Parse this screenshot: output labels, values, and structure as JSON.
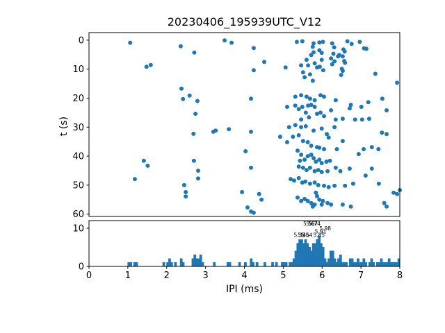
{
  "figure": {
    "title": "20230406_195939UTC_V12"
  },
  "colors": {
    "accent": "#1f77b4",
    "axis": "#000000",
    "background": "#ffffff"
  },
  "chart_data": [
    {
      "type": "scatter",
      "name": "ipi-vs-time-scatter",
      "title": "20230406_195939UTC_V12",
      "xlabel": "",
      "ylabel": "t (s)",
      "xlim": [
        0,
        8
      ],
      "ylim": [
        -2.6,
        60.8
      ],
      "y_inverted": true,
      "yticks": [
        0,
        10,
        20,
        30,
        40,
        50,
        60
      ],
      "grid": false,
      "marker_color": "#1f77b4",
      "marker_radius": 3,
      "points": [
        [
          1.06,
          0.9
        ],
        [
          3.49,
          0.1
        ],
        [
          2.36,
          2.1
        ],
        [
          2.71,
          4.3
        ],
        [
          3.67,
          0.9
        ],
        [
          1.48,
          9.2
        ],
        [
          1.59,
          8.6
        ],
        [
          2.38,
          16.7
        ],
        [
          2.42,
          20.3
        ],
        [
          2.59,
          19.1
        ],
        [
          2.79,
          21.0
        ],
        [
          2.74,
          25.4
        ],
        [
          4.24,
          2.7
        ],
        [
          4.24,
          10.4
        ],
        [
          4.51,
          7.5
        ],
        [
          5.06,
          9.4
        ],
        [
          5.35,
          0.6
        ],
        [
          5.49,
          0.4
        ],
        [
          5.78,
          1.1
        ],
        [
          5.93,
          0.8
        ],
        [
          6.02,
          0.6
        ],
        [
          6.26,
          1.1
        ],
        [
          6.65,
          0.4
        ],
        [
          6.76,
          1.3
        ],
        [
          6.97,
          0.6
        ],
        [
          7.08,
          2.8
        ],
        [
          7.14,
          3.0
        ],
        [
          6.55,
          3.2
        ],
        [
          5.76,
          2.3
        ],
        [
          5.78,
          4.2
        ],
        [
          5.72,
          5.1
        ],
        [
          5.93,
          3.5
        ],
        [
          5.99,
          4.4
        ],
        [
          6.31,
          2.5
        ],
        [
          6.29,
          4.7
        ],
        [
          6.44,
          5.1
        ],
        [
          6.58,
          3.9
        ],
        [
          6.53,
          5.6
        ],
        [
          6.57,
          7.2
        ],
        [
          6.59,
          7.8
        ],
        [
          6.51,
          9.9
        ],
        [
          5.46,
          8.7
        ],
        [
          5.51,
          11.1
        ],
        [
          5.6,
          6.8
        ],
        [
          5.64,
          8.7
        ],
        [
          5.69,
          11.8
        ],
        [
          5.81,
          8.0
        ],
        [
          5.87,
          9.4
        ],
        [
          5.94,
          9.2
        ],
        [
          5.99,
          6.8
        ],
        [
          6.03,
          10.4
        ],
        [
          6.23,
          6.3
        ],
        [
          6.26,
          8.3
        ],
        [
          6.32,
          7.3
        ],
        [
          6.41,
          5.6
        ],
        [
          6.49,
          12.0
        ],
        [
          6.53,
          10.6
        ],
        [
          7.37,
          11.6
        ],
        [
          7.93,
          14.7
        ],
        [
          5.55,
          12.8
        ],
        [
          5.76,
          14.0
        ],
        [
          4.17,
          20.2
        ],
        [
          5.31,
          19.5
        ],
        [
          5.46,
          19.0
        ],
        [
          5.6,
          19.5
        ],
        [
          5.69,
          20.2
        ],
        [
          5.81,
          20.7
        ],
        [
          5.96,
          19.0
        ],
        [
          6.05,
          19.5
        ],
        [
          6.35,
          20.7
        ],
        [
          5.1,
          23.0
        ],
        [
          5.31,
          22.6
        ],
        [
          5.4,
          23.8
        ],
        [
          5.49,
          23.0
        ],
        [
          5.58,
          25.0
        ],
        [
          5.64,
          22.6
        ],
        [
          5.72,
          22.3
        ],
        [
          5.81,
          23.0
        ],
        [
          5.87,
          25.4
        ],
        [
          5.96,
          25.0
        ],
        [
          6.05,
          26.2
        ],
        [
          5.46,
          27.4
        ],
        [
          5.66,
          26.6
        ],
        [
          6.23,
          24.2
        ],
        [
          6.74,
          22.3
        ],
        [
          6.71,
          23.5
        ],
        [
          7.01,
          23.0
        ],
        [
          7.19,
          21.4
        ],
        [
          7.55,
          20.2
        ],
        [
          7.66,
          24.2
        ],
        [
          6.35,
          27.4
        ],
        [
          6.53,
          27.1
        ],
        [
          6.85,
          27.4
        ],
        [
          7.03,
          27.4
        ],
        [
          7.21,
          27.1
        ],
        [
          2.69,
          32.3
        ],
        [
          3.2,
          31.6
        ],
        [
          3.26,
          31.2
        ],
        [
          3.6,
          30.7
        ],
        [
          1.41,
          41.6
        ],
        [
          1.51,
          43.3
        ],
        [
          1.18,
          47.9
        ],
        [
          2.7,
          41.6
        ],
        [
          2.81,
          45.0
        ],
        [
          2.81,
          47.7
        ],
        [
          2.45,
          50.0
        ],
        [
          2.49,
          52.4
        ],
        [
          2.49,
          53.9
        ],
        [
          3.94,
          52.4
        ],
        [
          4.08,
          57.7
        ],
        [
          5.15,
          30.0
        ],
        [
          5.31,
          29.3
        ],
        [
          5.46,
          30.0
        ],
        [
          5.58,
          29.7
        ],
        [
          5.78,
          31.2
        ],
        [
          5.99,
          30.5
        ],
        [
          6.12,
          32.4
        ],
        [
          6.32,
          30.0
        ],
        [
          4.17,
          31.6
        ],
        [
          4.92,
          33.3
        ],
        [
          5.1,
          35.2
        ],
        [
          5.25,
          33.3
        ],
        [
          5.4,
          32.8
        ],
        [
          5.51,
          34.8
        ],
        [
          5.63,
          35.2
        ],
        [
          5.72,
          36.4
        ],
        [
          5.87,
          36.9
        ],
        [
          5.93,
          37.1
        ],
        [
          6.05,
          37.6
        ],
        [
          6.17,
          33.6
        ],
        [
          6.38,
          37.6
        ],
        [
          6.53,
          34.8
        ],
        [
          7.54,
          31.9
        ],
        [
          7.66,
          32.4
        ],
        [
          6.94,
          39.3
        ],
        [
          7.07,
          37.6
        ],
        [
          7.28,
          36.9
        ],
        [
          7.45,
          37.6
        ],
        [
          4.03,
          38.3
        ],
        [
          4.17,
          44.0
        ],
        [
          5.37,
          38.1
        ],
        [
          5.46,
          39.5
        ],
        [
          5.43,
          41.6
        ],
        [
          5.55,
          41.2
        ],
        [
          5.63,
          40.0
        ],
        [
          5.72,
          39.5
        ],
        [
          5.78,
          40.7
        ],
        [
          5.84,
          41.9
        ],
        [
          5.93,
          41.2
        ],
        [
          5.99,
          42.4
        ],
        [
          6.11,
          41.9
        ],
        [
          6.2,
          41.6
        ],
        [
          5.4,
          43.6
        ],
        [
          5.51,
          44.0
        ],
        [
          5.6,
          44.8
        ],
        [
          5.69,
          44.0
        ],
        [
          5.81,
          45.2
        ],
        [
          5.9,
          44.8
        ],
        [
          5.99,
          45.5
        ],
        [
          6.14,
          45.2
        ],
        [
          6.35,
          44.0
        ],
        [
          6.47,
          45.2
        ],
        [
          6.71,
          44.3
        ],
        [
          7.12,
          46.7
        ],
        [
          7.28,
          44.3
        ],
        [
          7.46,
          49.5
        ],
        [
          5.19,
          47.9
        ],
        [
          5.28,
          48.4
        ],
        [
          5.4,
          47.6
        ],
        [
          5.49,
          49.1
        ],
        [
          5.57,
          48.8
        ],
        [
          5.69,
          49.5
        ],
        [
          5.81,
          49.1
        ],
        [
          5.9,
          50.0
        ],
        [
          6.05,
          50.2
        ],
        [
          6.17,
          50.7
        ],
        [
          6.32,
          50.2
        ],
        [
          6.59,
          50.2
        ],
        [
          6.8,
          49.5
        ],
        [
          4.38,
          53.1
        ],
        [
          4.44,
          55.0
        ],
        [
          5.37,
          54.3
        ],
        [
          5.46,
          55.5
        ],
        [
          5.55,
          54.8
        ],
        [
          5.63,
          55.5
        ],
        [
          5.72,
          56.2
        ],
        [
          5.84,
          52.6
        ],
        [
          5.87,
          53.8
        ],
        [
          5.93,
          55.0
        ],
        [
          6.02,
          55.5
        ],
        [
          5.81,
          56.7
        ],
        [
          5.99,
          56.7
        ],
        [
          6.14,
          56.2
        ],
        [
          6.23,
          56.7
        ],
        [
          6.53,
          56.7
        ],
        [
          6.74,
          57.4
        ],
        [
          7.6,
          56.2
        ],
        [
          7.66,
          57.4
        ],
        [
          4.17,
          59.1
        ],
        [
          4.24,
          59.5
        ],
        [
          7.84,
          52.6
        ],
        [
          7.93,
          53.1
        ],
        [
          5.76,
          57.4
        ],
        [
          8.0,
          51.7
        ]
      ]
    },
    {
      "type": "histogram",
      "name": "ipi-histogram",
      "xlabel": "IPI (ms)",
      "ylabel": "",
      "xlim": [
        0,
        8
      ],
      "ylim": [
        0,
        12
      ],
      "yticks": [
        0,
        10
      ],
      "xticks": [
        0,
        1,
        2,
        3,
        4,
        5,
        6,
        7,
        8
      ],
      "grid": false,
      "bar_color": "#1f77b4",
      "bin_start": 0,
      "bin_width": 0.05,
      "values": [
        0,
        0,
        0,
        0,
        0,
        0,
        0,
        0,
        0,
        0,
        0,
        0,
        0,
        0,
        0,
        0,
        0,
        0,
        0,
        0,
        1,
        1,
        0,
        1,
        1,
        0,
        0,
        0,
        0,
        0,
        0,
        0,
        0,
        0,
        0,
        0,
        0,
        0,
        1,
        0,
        1,
        2,
        1,
        0,
        1,
        0,
        0,
        2,
        1,
        0,
        0,
        0,
        0,
        2,
        3,
        2,
        2,
        3,
        1,
        0,
        0,
        0,
        0,
        0,
        1,
        0,
        0,
        0,
        0,
        0,
        0,
        1,
        1,
        0,
        0,
        0,
        0,
        1,
        0,
        0,
        1,
        0,
        0,
        2,
        1,
        0,
        1,
        0,
        0,
        0,
        1,
        0,
        0,
        0,
        1,
        0,
        1,
        0,
        0,
        1,
        1,
        1,
        0,
        1,
        1,
        2,
        4,
        6,
        7,
        7,
        6,
        7,
        6,
        5,
        4,
        6,
        6,
        7,
        8,
        6,
        5,
        2,
        1,
        2,
        4,
        4,
        2,
        1,
        2,
        3,
        1,
        1,
        1,
        0,
        2,
        2,
        1,
        1,
        2,
        1,
        1,
        2,
        1,
        0,
        1,
        2,
        1,
        0,
        1,
        1,
        2,
        1,
        1,
        1,
        2,
        1,
        1,
        1,
        1,
        2
      ],
      "peak_annotations": [
        {
          "label": "5.35",
          "x": 5.42,
          "y": 7.7
        },
        {
          "label": "5.46",
          "x": 5.52,
          "y": 7.7
        },
        {
          "label": "5.54",
          "x": 5.6,
          "y": 7.7
        },
        {
          "label": "5.85",
          "x": 5.92,
          "y": 7.7
        },
        {
          "label": "5.91",
          "x": 5.96,
          "y": 8.6
        },
        {
          "label": "5.98",
          "x": 6.08,
          "y": 9.5
        },
        {
          "label": "5.56",
          "x": 5.66,
          "y": 10.7
        },
        {
          "label": "5.67",
          "x": 5.74,
          "y": 10.7
        },
        {
          "label": "5.74",
          "x": 5.81,
          "y": 10.7
        }
      ]
    }
  ]
}
